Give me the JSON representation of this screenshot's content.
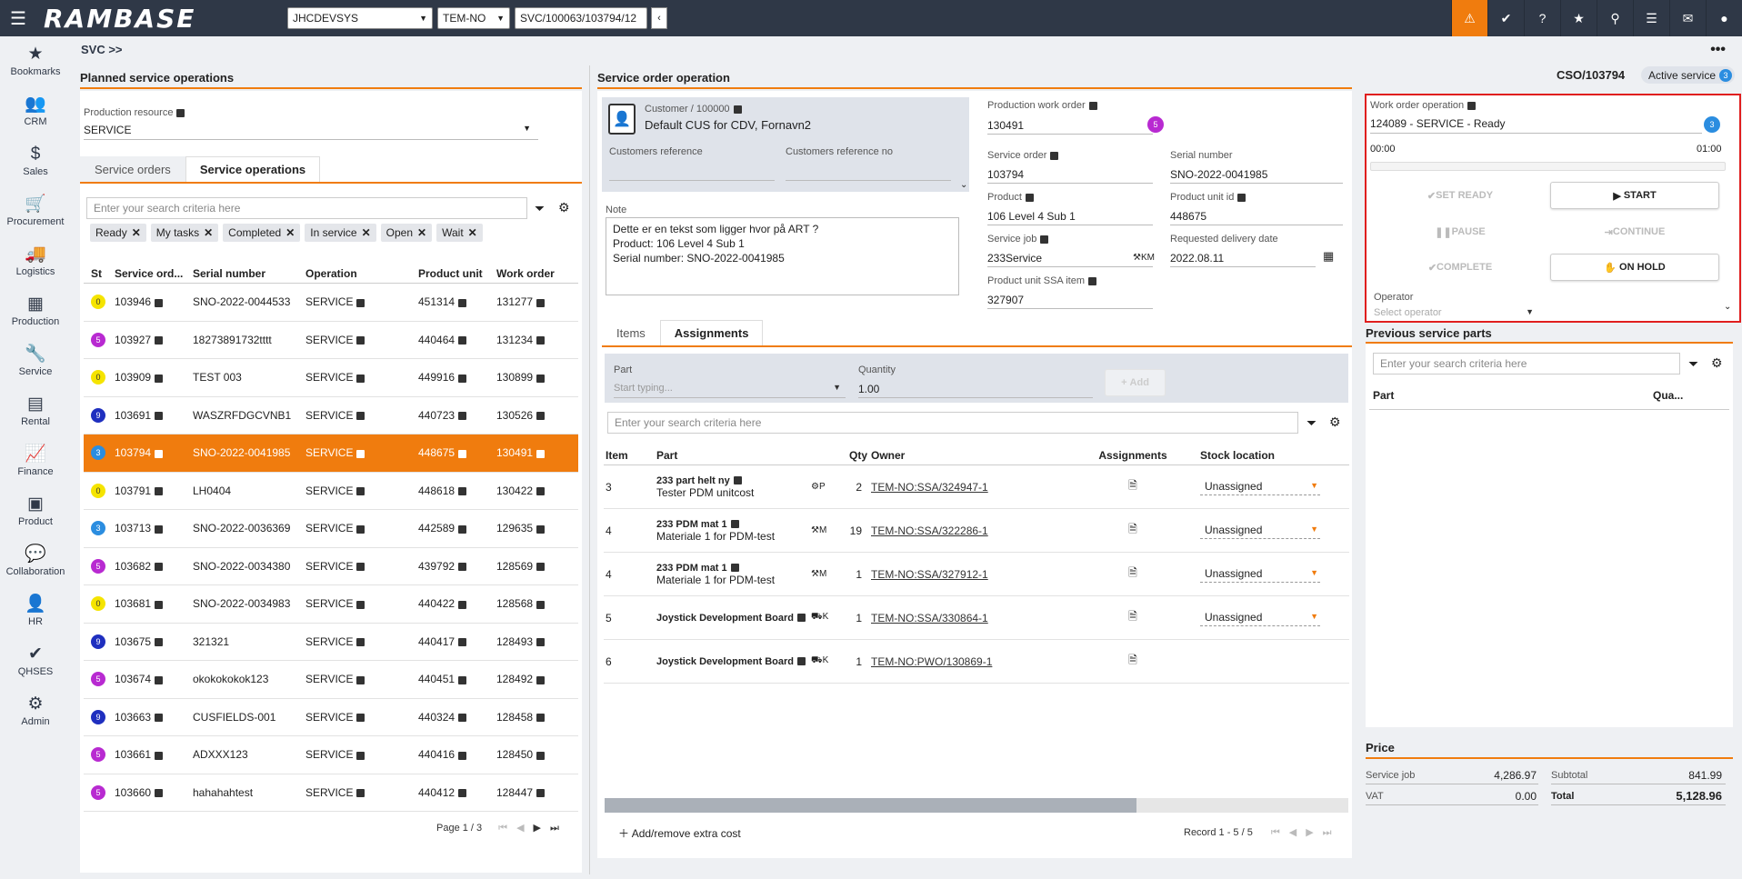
{
  "topbar": {
    "logo": "RAMBASE",
    "company": "JHCDEVSYS",
    "locale": "TEM-NO",
    "path": "SVC/100063/103794/12"
  },
  "sidebar": {
    "items": [
      {
        "label": "Bookmarks",
        "icon": "star-icon"
      },
      {
        "label": "CRM",
        "icon": "people-icon"
      },
      {
        "label": "Sales",
        "icon": "money-bag-icon"
      },
      {
        "label": "Procurement",
        "icon": "cart-icon"
      },
      {
        "label": "Logistics",
        "icon": "truck-icon"
      },
      {
        "label": "Production",
        "icon": "boxes-icon"
      },
      {
        "label": "Service",
        "icon": "wrench-icon"
      },
      {
        "label": "Rental",
        "icon": "rental-icon"
      },
      {
        "label": "Finance",
        "icon": "chart-line-icon"
      },
      {
        "label": "Product",
        "icon": "box-icon"
      },
      {
        "label": "Collaboration",
        "icon": "chat-icon"
      },
      {
        "label": "HR",
        "icon": "person-icon"
      },
      {
        "label": "QHSES",
        "icon": "check-badge-icon"
      },
      {
        "label": "Admin",
        "icon": "gear-icon"
      }
    ]
  },
  "breadcrumb": "SVC >>",
  "left": {
    "title": "Planned service operations",
    "resource_label": "Production resource",
    "resource_value": "SERVICE",
    "tabs": [
      "Service orders",
      "Service operations"
    ],
    "search_placeholder": "Enter your search criteria here",
    "chips": [
      "Ready",
      "My tasks",
      "Completed",
      "In service",
      "Open",
      "Wait"
    ],
    "columns": [
      "St",
      "Service ord...",
      "Serial number",
      "Operation",
      "Product unit",
      "Work order"
    ],
    "rows": [
      {
        "st": "0",
        "color": "#f5e400",
        "order": "103946",
        "serial": "SNO-2022-0044533",
        "op": "SERVICE",
        "unit": "451314",
        "wo": "131277"
      },
      {
        "st": "5",
        "color": "#b82ad1",
        "order": "103927",
        "serial": "18273891732tttt",
        "op": "SERVICE",
        "unit": "440464",
        "wo": "131234"
      },
      {
        "st": "0",
        "color": "#f5e400",
        "order": "103909",
        "serial": "TEST 003",
        "op": "SERVICE",
        "unit": "449916",
        "wo": "130899"
      },
      {
        "st": "9",
        "color": "#1f2fbf",
        "order": "103691",
        "serial": "WASZRFDGCVNB1",
        "op": "SERVICE",
        "unit": "440723",
        "wo": "130526"
      },
      {
        "st": "3",
        "color": "#2b8de0",
        "order": "103794",
        "serial": "SNO-2022-0041985",
        "op": "SERVICE",
        "unit": "448675",
        "wo": "130491"
      },
      {
        "st": "0",
        "color": "#f5e400",
        "order": "103791",
        "serial": "LH0404",
        "op": "SERVICE",
        "unit": "448618",
        "wo": "130422"
      },
      {
        "st": "3",
        "color": "#2b8de0",
        "order": "103713",
        "serial": "SNO-2022-0036369",
        "op": "SERVICE",
        "unit": "442589",
        "wo": "129635"
      },
      {
        "st": "5",
        "color": "#b82ad1",
        "order": "103682",
        "serial": "SNO-2022-0034380",
        "op": "SERVICE",
        "unit": "439792",
        "wo": "128569"
      },
      {
        "st": "0",
        "color": "#f5e400",
        "order": "103681",
        "serial": "SNO-2022-0034983",
        "op": "SERVICE",
        "unit": "440422",
        "wo": "128568"
      },
      {
        "st": "9",
        "color": "#1f2fbf",
        "order": "103675",
        "serial": "321321",
        "op": "SERVICE",
        "unit": "440417",
        "wo": "128493"
      },
      {
        "st": "5",
        "color": "#b82ad1",
        "order": "103674",
        "serial": "okokokokok123",
        "op": "SERVICE",
        "unit": "440451",
        "wo": "128492"
      },
      {
        "st": "9",
        "color": "#1f2fbf",
        "order": "103663",
        "serial": "CUSFIELDS-001",
        "op": "SERVICE",
        "unit": "440324",
        "wo": "128458"
      },
      {
        "st": "5",
        "color": "#b82ad1",
        "order": "103661",
        "serial": "ADXXX123",
        "op": "SERVICE",
        "unit": "440416",
        "wo": "128450"
      },
      {
        "st": "5",
        "color": "#b82ad1",
        "order": "103660",
        "serial": "hahahahtest",
        "op": "SERVICE",
        "unit": "440412",
        "wo": "128447"
      }
    ],
    "pager": "Page 1 / 3"
  },
  "center": {
    "title": "Service order operation",
    "customer_label": "Customer / 100000",
    "customer_name": "Default CUS for CDV, Fornavn2",
    "cust_ref_label": "Customers reference",
    "cust_ref_no_label": "Customers reference no",
    "note_label": "Note",
    "note_lines": [
      "Dette er en tekst som ligger hvor på ART ?",
      "Product: 106 Level 4 Sub 1",
      "Serial number: SNO-2022-0041985"
    ],
    "pwo_label": "Production work order",
    "pwo_value": "130491",
    "pwo_badge": "5",
    "so_label": "Service order",
    "so_value": "103794",
    "serial_label": "Serial number",
    "serial_value": "SNO-2022-0041985",
    "product_label": "Product",
    "product_value": "106 Level 4 Sub 1",
    "unit_label": "Product unit id",
    "unit_value": "448675",
    "job_label": "Service job",
    "job_value": "233Service",
    "job_suffix": "KM",
    "delivery_label": "Requested delivery date",
    "delivery_value": "2022.08.11",
    "ssa_label": "Product unit SSA item",
    "ssa_value": "327907",
    "tabs": [
      "Items",
      "Assignments"
    ],
    "part_label": "Part",
    "part_placeholder": "Start typing...",
    "qty_label": "Quantity",
    "qty_value": "1.00",
    "add_label": "Add",
    "search_placeholder": "Enter your search criteria here",
    "columns": [
      "Item",
      "Part",
      "Qty",
      "Owner",
      "Assignments",
      "Stock location"
    ],
    "rows": [
      {
        "item": "3",
        "part": "233 part helt ny",
        "desc": "Tester PDM unitcost",
        "code": "P",
        "qty": "2",
        "owner": "TEM-NO:SSA/324947-1",
        "loc": "Unassigned"
      },
      {
        "item": "4",
        "part": "233 PDM mat 1",
        "desc": "Materiale 1 for PDM-test",
        "code": "M",
        "qty": "19",
        "owner": "TEM-NO:SSA/322286-1",
        "loc": "Unassigned"
      },
      {
        "item": "4",
        "part": "233 PDM mat 1",
        "desc": "Materiale 1 for PDM-test",
        "code": "M",
        "qty": "1",
        "owner": "TEM-NO:SSA/327912-1",
        "loc": "Unassigned"
      },
      {
        "item": "5",
        "part": "Joystick Development Board",
        "desc": "",
        "code": "K",
        "qty": "1",
        "owner": "TEM-NO:SSA/330864-1",
        "loc": "Unassigned"
      },
      {
        "item": "6",
        "part": "Joystick Development Board",
        "desc": "",
        "code": "K",
        "qty": "1",
        "owner": "TEM-NO:PWO/130869-1",
        "loc": ""
      }
    ],
    "extra_cost": "Add/remove extra cost",
    "record": "Record 1 - 5 / 5"
  },
  "right": {
    "doc_id": "CSO/103794",
    "status_label": "Active service",
    "status_badge": "3",
    "wop_label": "Work order operation",
    "wop_value": "124089 - SERVICE - Ready",
    "wop_badge": "3",
    "time_start": "00:00",
    "time_end": "01:00",
    "progress": 0,
    "buttons": {
      "set_ready": "SET READY",
      "start": "START",
      "pause": "PAUSE",
      "continue": "CONTINUE",
      "complete": "COMPLETE",
      "on_hold": "ON HOLD"
    },
    "operator_label": "Operator",
    "operator_placeholder": "Select operator",
    "prev_title": "Previous service parts",
    "prev_search": "Enter your search criteria here",
    "prev_columns": [
      "Part",
      "Qua..."
    ],
    "price_title": "Price",
    "price": {
      "service_job_label": "Service job",
      "service_job": "4,286.97",
      "vat_label": "VAT",
      "vat": "0.00",
      "subtotal_label": "Subtotal",
      "subtotal": "841.99",
      "total_label": "Total",
      "total": "5,128.96"
    }
  },
  "colors": {
    "accent": "#f07c0e",
    "topbar": "#2f3847",
    "highlight": "#e01e1e"
  }
}
